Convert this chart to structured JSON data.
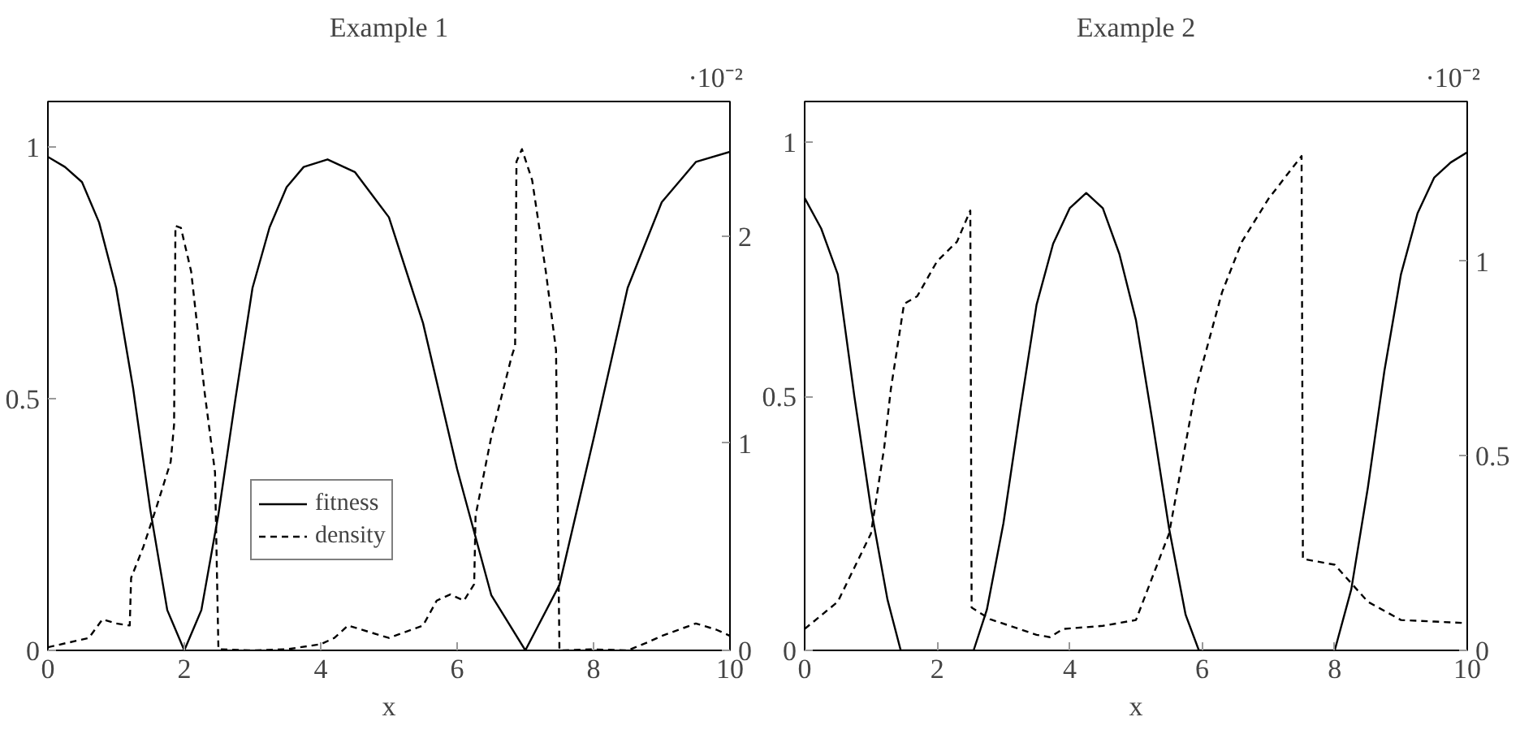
{
  "chart_data": [
    {
      "type": "line",
      "title": "Example 1",
      "xlabel": "x",
      "xlim": [
        0,
        10
      ],
      "xticks": [
        0,
        2,
        4,
        6,
        8,
        10
      ],
      "ylim": [
        0,
        1.09
      ],
      "yticks": [
        0,
        0.5,
        1
      ],
      "y2lim": [
        0,
        2.65
      ],
      "y2ticks": [
        0,
        1,
        2
      ],
      "annotations": [
        "·10⁻²"
      ],
      "legend": "bottom",
      "grid": false,
      "series": [
        {
          "name": "fitness",
          "color": "#000000",
          "line_style": "solid",
          "x": [
            0,
            0.25,
            0.5,
            0.75,
            1,
            1.25,
            1.5,
            1.75,
            2,
            2.25,
            2.5,
            2.75,
            3,
            3.25,
            3.5,
            3.75,
            4.1,
            4.5,
            5,
            5.5,
            6,
            6.5,
            7,
            7.5,
            8,
            8.5,
            9,
            9.5,
            10
          ],
          "values": [
            0.98,
            0.96,
            0.93,
            0.85,
            0.72,
            0.52,
            0.28,
            0.08,
            0,
            0.08,
            0.27,
            0.5,
            0.72,
            0.84,
            0.92,
            0.96,
            0.975,
            0.95,
            0.86,
            0.65,
            0.36,
            0.11,
            0,
            0.13,
            0.42,
            0.72,
            0.89,
            0.97,
            0.99
          ]
        },
        {
          "name": "density",
          "color": "#000000",
          "line_style": "dashed",
          "axis": "y2",
          "x": [
            0,
            0.6,
            0.8,
            1.0,
            1.2,
            1.22,
            1.4,
            1.6,
            1.8,
            1.85,
            1.87,
            1.95,
            2.1,
            2.3,
            2.45,
            2.5,
            3,
            3.5,
            4,
            4.2,
            4.4,
            4.7,
            5,
            5.5,
            5.7,
            5.9,
            6.1,
            6.25,
            6.27,
            6.5,
            6.8,
            6.85,
            6.87,
            6.95,
            7.1,
            7.3,
            7.45,
            7.5,
            8,
            8.5,
            8.8,
            9,
            9.5,
            9.8,
            10
          ],
          "values": [
            0.015,
            0.06,
            0.15,
            0.13,
            0.12,
            0.35,
            0.5,
            0.7,
            0.91,
            1.09,
            2.05,
            2.04,
            1.83,
            1.24,
            0.86,
            0.005,
            0,
            0.005,
            0.03,
            0.06,
            0.12,
            0.09,
            0.06,
            0.12,
            0.24,
            0.27,
            0.24,
            0.32,
            0.65,
            1.03,
            1.42,
            1.47,
            2.36,
            2.42,
            2.27,
            1.83,
            1.45,
            0,
            0.005,
            0,
            0.04,
            0.07,
            0.13,
            0.1,
            0.07
          ]
        }
      ]
    },
    {
      "type": "line",
      "title": "Example 2",
      "xlabel": "x",
      "xlim": [
        0,
        10
      ],
      "xticks": [
        0,
        2,
        4,
        6,
        8,
        10
      ],
      "ylim": [
        0,
        1.08
      ],
      "yticks": [
        0,
        0.5,
        1
      ],
      "y2lim": [
        0,
        1.41
      ],
      "y2ticks": [
        0,
        0.5,
        1
      ],
      "annotations": [
        "·10⁻²"
      ],
      "grid": false,
      "series": [
        {
          "color": "#000000",
          "line_style": "solid",
          "x": [
            0,
            0.25,
            0.5,
            0.75,
            1,
            1.25,
            1.45,
            2,
            2.55,
            2.75,
            3,
            3.25,
            3.5,
            3.75,
            4,
            4.25,
            4.5,
            4.75,
            5,
            5.25,
            5.5,
            5.75,
            5.95,
            7,
            8,
            8.25,
            8.5,
            8.75,
            9,
            9.25,
            9.5,
            9.75,
            10
          ],
          "values": [
            0.89,
            0.83,
            0.74,
            0.5,
            0.28,
            0.1,
            0,
            0,
            0,
            0.08,
            0.25,
            0.47,
            0.68,
            0.8,
            0.87,
            0.9,
            0.87,
            0.78,
            0.65,
            0.45,
            0.24,
            0.07,
            0,
            0,
            0,
            0.12,
            0.32,
            0.55,
            0.74,
            0.86,
            0.93,
            0.96,
            0.98
          ]
        },
        {
          "color": "#000000",
          "line_style": "dashed",
          "axis": "y2",
          "x": [
            0,
            0.5,
            1,
            1.2,
            1.3,
            1.5,
            1.7,
            2,
            2.3,
            2.5,
            2.52,
            2.8,
            3.5,
            3.7,
            3.9,
            4.5,
            5,
            5.5,
            5.9,
            6.3,
            6.6,
            7,
            7.5,
            7.52,
            8,
            8.5,
            9,
            9.5,
            10
          ],
          "values": [
            0.055,
            0.125,
            0.3,
            0.52,
            0.67,
            0.89,
            0.91,
            1.0,
            1.05,
            1.13,
            0.11,
            0.08,
            0.04,
            0.034,
            0.055,
            0.063,
            0.078,
            0.3,
            0.67,
            0.92,
            1.05,
            1.16,
            1.27,
            0.235,
            0.22,
            0.125,
            0.078,
            0.074,
            0.07
          ]
        }
      ]
    }
  ]
}
